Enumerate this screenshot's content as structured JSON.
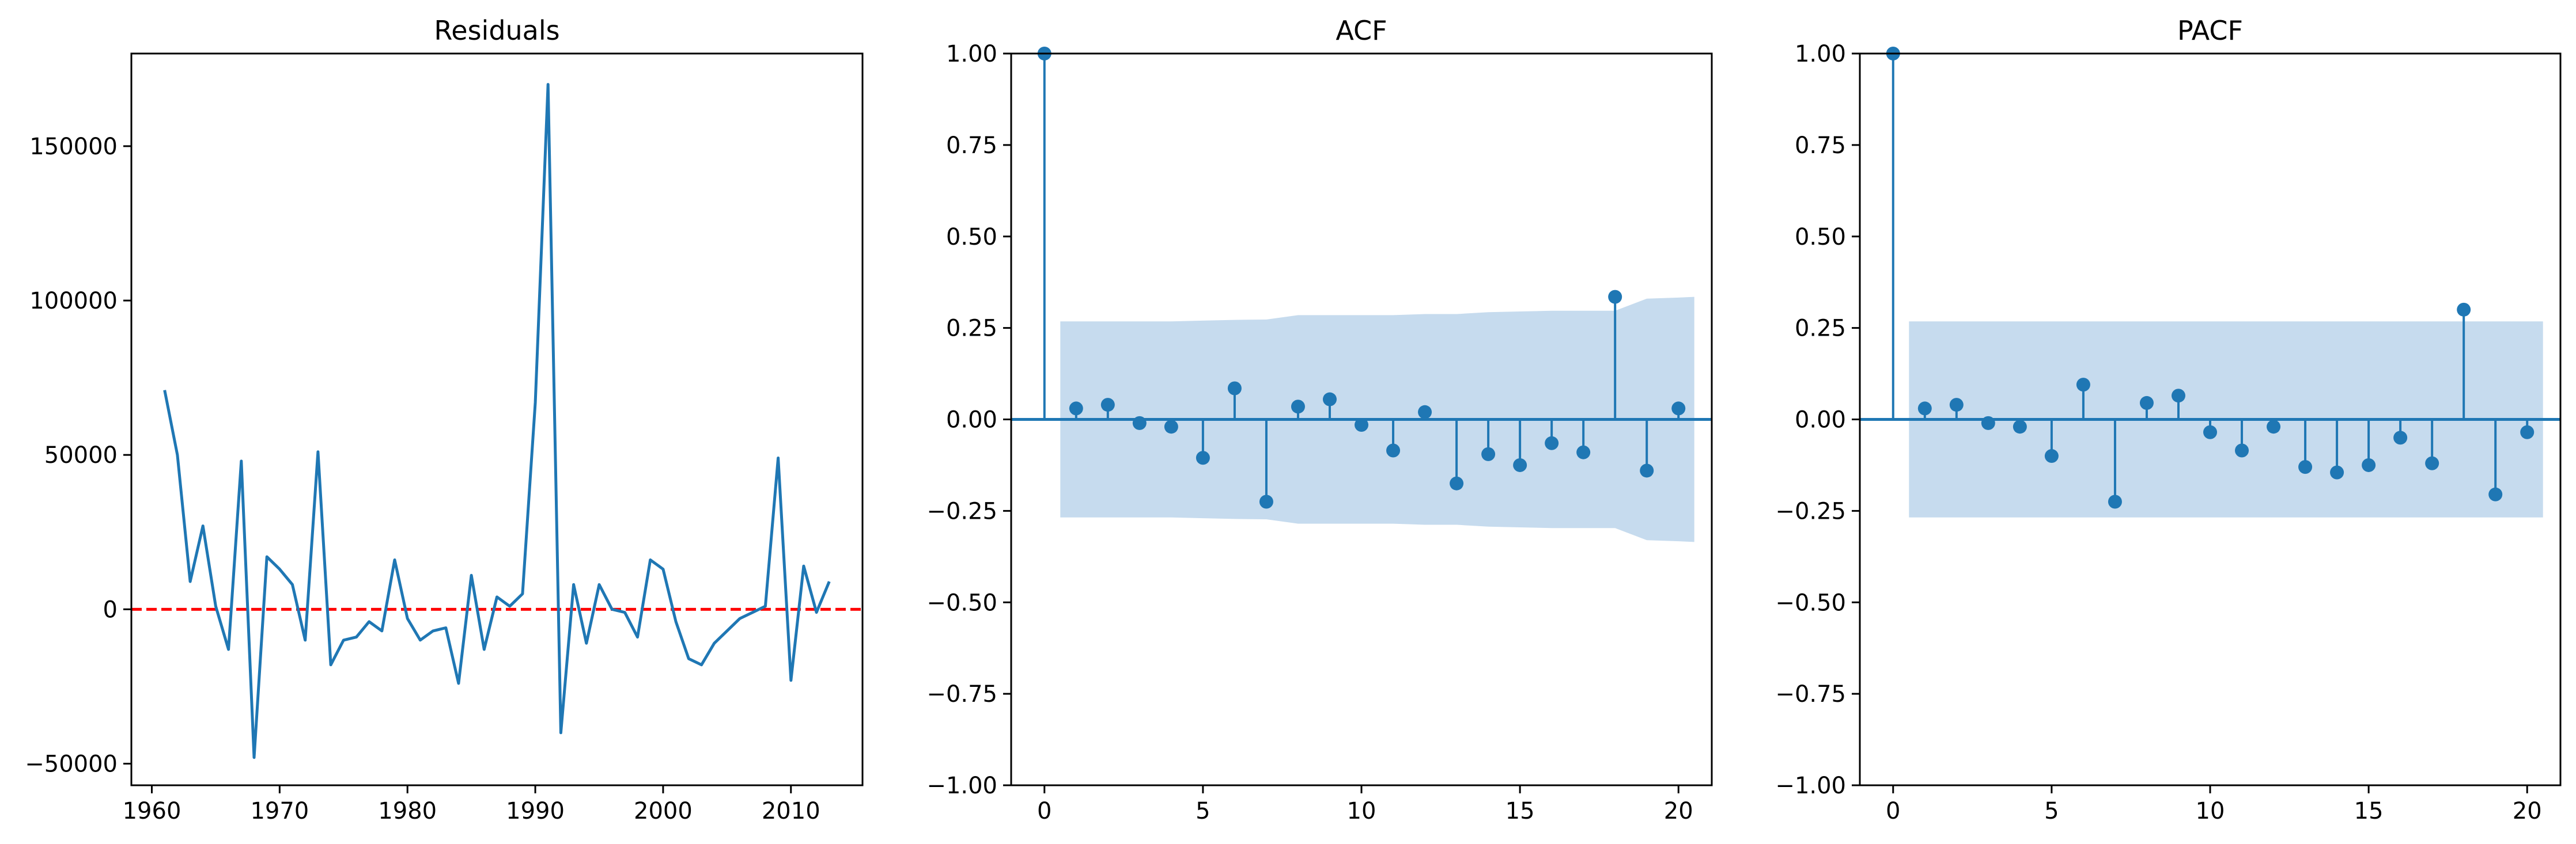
{
  "chart_data": [
    {
      "type": "line",
      "title": "Residuals",
      "xlim": [
        1958.4,
        2015.6
      ],
      "ylim": [
        -57000,
        180000
      ],
      "xticks": [
        1960,
        1970,
        1980,
        1990,
        2000,
        2010
      ],
      "xtick_labels": [
        "1960",
        "1970",
        "1980",
        "1990",
        "2000",
        "2010"
      ],
      "yticks": [
        -50000,
        0,
        50000,
        100000,
        150000
      ],
      "ytick_labels": [
        "−50000",
        "0",
        "50000",
        "100000",
        "150000"
      ],
      "series_color": "#1f77b4",
      "reference_line": {
        "y": 0,
        "color": "#ff0000",
        "style": "dashed"
      },
      "x": [
        1961,
        1962,
        1963,
        1964,
        1965,
        1966,
        1967,
        1968,
        1969,
        1970,
        1971,
        1972,
        1973,
        1974,
        1975,
        1976,
        1977,
        1978,
        1979,
        1980,
        1981,
        1982,
        1983,
        1984,
        1985,
        1986,
        1987,
        1988,
        1989,
        1990,
        1991,
        1992,
        1993,
        1994,
        1995,
        1996,
        1997,
        1998,
        1999,
        2000,
        2001,
        2002,
        2003,
        2004,
        2005,
        2006,
        2007,
        2008,
        2009,
        2010,
        2011,
        2012,
        2013
      ],
      "y": [
        71000,
        50000,
        9000,
        27000,
        1000,
        -13000,
        48000,
        -48000,
        17000,
        13000,
        8000,
        -10000,
        51000,
        -18000,
        -10000,
        -9000,
        -4000,
        -7000,
        16000,
        -3000,
        -10000,
        -7000,
        -6000,
        -24000,
        11000,
        -13000,
        4000,
        1000,
        5000,
        67000,
        170000,
        -40000,
        8000,
        -11000,
        8000,
        0,
        -1000,
        -9000,
        16000,
        13000,
        -4000,
        -16000,
        -18000,
        -11000,
        -7000,
        -3000,
        -1000,
        1000,
        49000,
        -23000,
        14000,
        -1000,
        9000
      ]
    },
    {
      "type": "stem",
      "title": "ACF",
      "xlim": [
        -1.05,
        21.05
      ],
      "ylim": [
        -1.0,
        1.0
      ],
      "xticks": [
        0,
        5,
        10,
        15,
        20
      ],
      "xtick_labels": [
        "0",
        "5",
        "10",
        "15",
        "20"
      ],
      "yticks": [
        -1.0,
        -0.75,
        -0.5,
        -0.25,
        0.0,
        0.25,
        0.5,
        0.75,
        1.0
      ],
      "ytick_labels": [
        "−1.00",
        "−0.75",
        "−0.50",
        "−0.25",
        "0.00",
        "0.25",
        "0.50",
        "0.75",
        "1.00"
      ],
      "series_color": "#1f77b4",
      "band_color": "#c6dbee",
      "lags": [
        0,
        1,
        2,
        3,
        4,
        5,
        6,
        7,
        8,
        9,
        10,
        11,
        12,
        13,
        14,
        15,
        16,
        17,
        18,
        19,
        20
      ],
      "values": [
        1.0,
        0.03,
        0.04,
        -0.01,
        -0.02,
        -0.105,
        0.085,
        -0.225,
        0.035,
        0.055,
        -0.015,
        -0.085,
        0.02,
        -0.175,
        -0.095,
        -0.125,
        -0.065,
        -0.09,
        0.335,
        -0.14,
        0.03
      ],
      "confidence_band": {
        "x": [
          0.5,
          1,
          2,
          3,
          4,
          5,
          6,
          7,
          8,
          9,
          10,
          11,
          12,
          13,
          14,
          15,
          16,
          17,
          18,
          19,
          20,
          20.5
        ],
        "upper": [
          0.268,
          0.268,
          0.268,
          0.268,
          0.268,
          0.27,
          0.272,
          0.273,
          0.285,
          0.285,
          0.285,
          0.285,
          0.288,
          0.288,
          0.293,
          0.295,
          0.297,
          0.297,
          0.297,
          0.33,
          0.333,
          0.335
        ]
      }
    },
    {
      "type": "stem",
      "title": "PACF",
      "xlim": [
        -1.05,
        21.05
      ],
      "ylim": [
        -1.0,
        1.0
      ],
      "xticks": [
        0,
        5,
        10,
        15,
        20
      ],
      "xtick_labels": [
        "0",
        "5",
        "10",
        "15",
        "20"
      ],
      "yticks": [
        -1.0,
        -0.75,
        -0.5,
        -0.25,
        0.0,
        0.25,
        0.5,
        0.75,
        1.0
      ],
      "ytick_labels": [
        "−1.00",
        "−0.75",
        "−0.50",
        "−0.25",
        "0.00",
        "0.25",
        "0.50",
        "0.75",
        "1.00"
      ],
      "series_color": "#1f77b4",
      "band_color": "#c6dbee",
      "lags": [
        0,
        1,
        2,
        3,
        4,
        5,
        6,
        7,
        8,
        9,
        10,
        11,
        12,
        13,
        14,
        15,
        16,
        17,
        18,
        19,
        20
      ],
      "values": [
        1.0,
        0.03,
        0.04,
        -0.01,
        -0.02,
        -0.1,
        0.095,
        -0.225,
        0.045,
        0.065,
        -0.035,
        -0.085,
        -0.02,
        -0.13,
        -0.145,
        -0.125,
        -0.05,
        -0.12,
        0.3,
        -0.205,
        -0.035
      ],
      "confidence_band": {
        "x": [
          0.5,
          20.5
        ],
        "upper": [
          0.268,
          0.268
        ]
      }
    }
  ]
}
